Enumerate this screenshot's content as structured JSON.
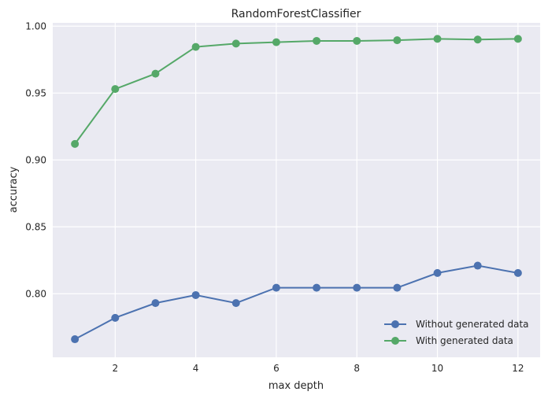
{
  "chart_data": {
    "type": "line",
    "title": "RandomForestClassifier",
    "xlabel": "max depth",
    "ylabel": "accuracy",
    "x": [
      1,
      2,
      3,
      4,
      5,
      6,
      7,
      8,
      9,
      10,
      11,
      12
    ],
    "xlim": [
      0.45,
      12.55
    ],
    "ylim": [
      0.7525,
      1.0025
    ],
    "xticks": [
      2,
      4,
      6,
      8,
      10,
      12
    ],
    "yticks": [
      "0.80",
      "0.85",
      "0.90",
      "0.95",
      "1.00"
    ],
    "grid": true,
    "legend_position": "lower-right",
    "series": [
      {
        "name": "Without generated data",
        "color": "#4c72b0",
        "values": [
          0.766,
          0.782,
          0.793,
          0.799,
          0.793,
          0.8045,
          0.8045,
          0.8045,
          0.8045,
          0.8155,
          0.821,
          0.8155
        ]
      },
      {
        "name": "With generated data",
        "color": "#55a868",
        "values": [
          0.912,
          0.953,
          0.9645,
          0.9845,
          0.987,
          0.988,
          0.989,
          0.989,
          0.9895,
          0.9905,
          0.99,
          0.9905
        ]
      }
    ]
  }
}
